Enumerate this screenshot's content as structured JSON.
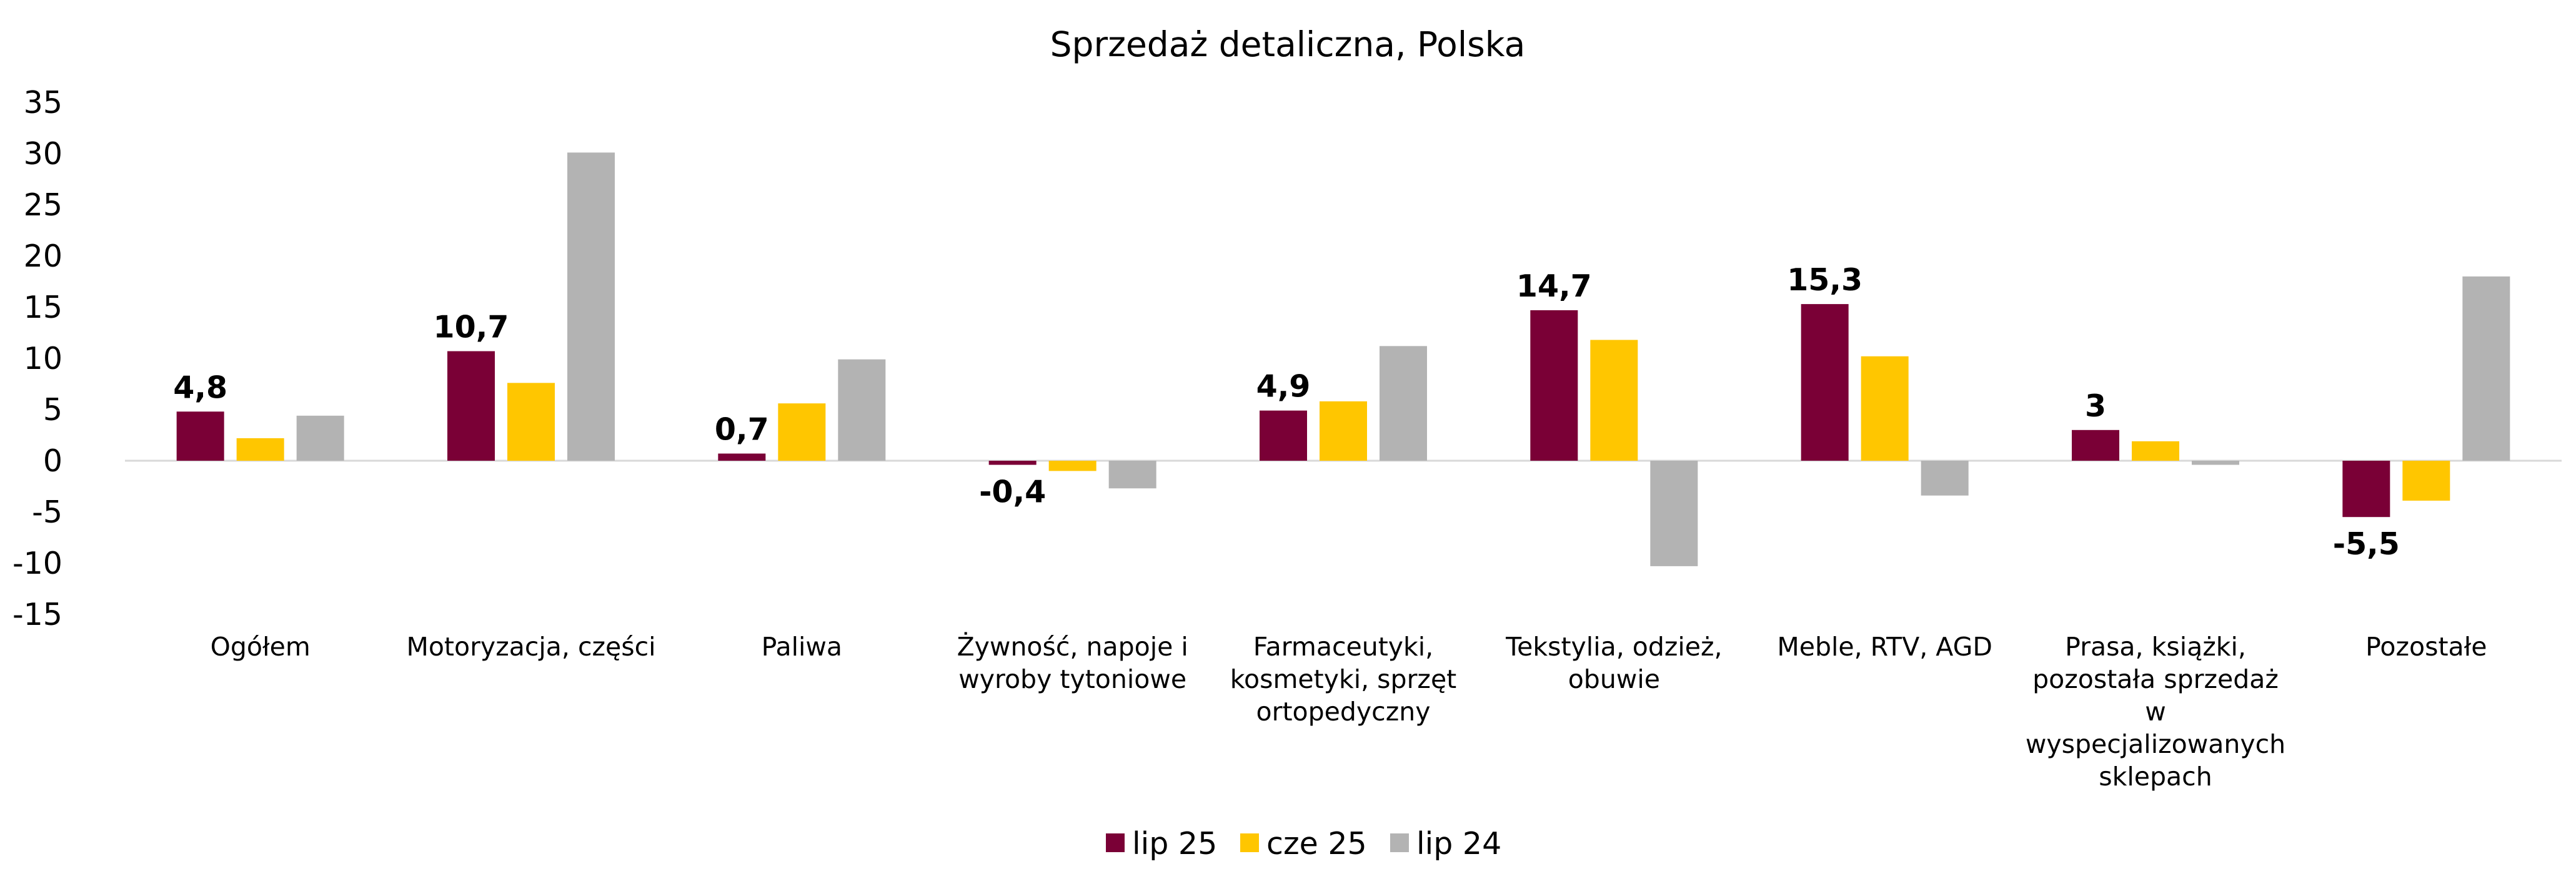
{
  "chart_data": {
    "type": "bar",
    "title": "Sprzedaż detaliczna, Polska",
    "xlabel": "",
    "ylabel": "",
    "ylim": [
      -15,
      35
    ],
    "yticks": [
      35,
      30,
      25,
      20,
      15,
      10,
      5,
      0,
      -5,
      -10,
      -15
    ],
    "grid": false,
    "legend_position": "bottom",
    "categories": [
      [
        "Ogółem"
      ],
      [
        "Motoryzacja, części"
      ],
      [
        "Paliwa"
      ],
      [
        "Żywność, napoje i",
        "wyroby tytoniowe"
      ],
      [
        "Farmaceutyki,",
        "kosmetyki, sprzęt",
        "ortopedyczny"
      ],
      [
        "Tekstylia, odzież,",
        "obuwie"
      ],
      [
        "Meble, RTV, AGD"
      ],
      [
        "Prasa, książki,",
        "pozostała sprzedaż",
        "w",
        "wyspecjalizowanych",
        "sklepach"
      ],
      [
        "Pozostałe"
      ]
    ],
    "series": [
      {
        "name": "lip 25",
        "color": "#7A0036",
        "values": [
          4.8,
          10.7,
          0.7,
          -0.4,
          4.9,
          14.7,
          15.3,
          3.0,
          -5.5
        ],
        "labels": [
          "4,8",
          "10,7",
          "0,7",
          "-0,4",
          "4,9",
          "14,7",
          "15,3",
          "3",
          "-5,5"
        ]
      },
      {
        "name": "cze 25",
        "color": "#FFC600",
        "values": [
          2.2,
          7.6,
          5.6,
          -1.0,
          5.8,
          11.8,
          10.2,
          1.9,
          -3.9
        ],
        "labels": []
      },
      {
        "name": "lip 24",
        "color": "#B3B3B3",
        "values": [
          4.4,
          30.1,
          9.9,
          -2.7,
          11.2,
          -10.3,
          -3.4,
          -0.4,
          18.0
        ],
        "labels": []
      }
    ]
  }
}
